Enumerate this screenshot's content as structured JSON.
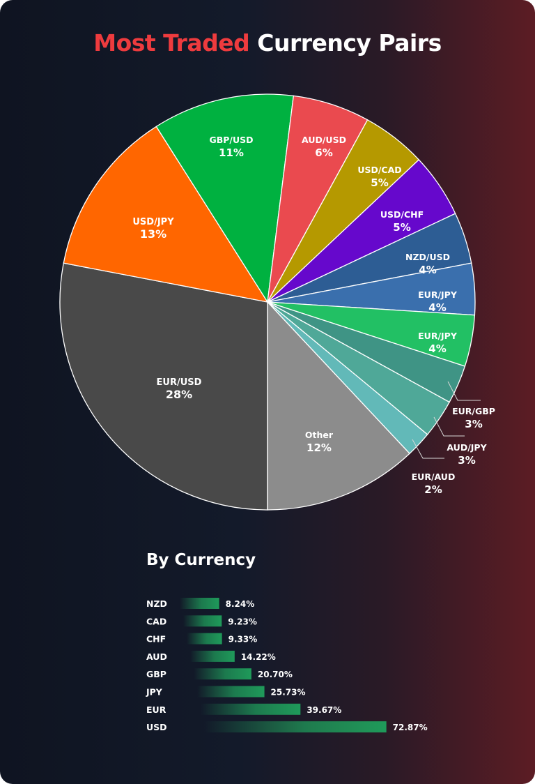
{
  "title": {
    "highlight": "Most Traded",
    "rest": "Currency Pairs"
  },
  "colors": {
    "title_highlight": "#ee3b3e",
    "bar": "#1f9a5a",
    "background_left": "#0f1421",
    "background_right": "#5c1c24"
  },
  "chart_data": [
    {
      "type": "pie",
      "title": "Most Traded Currency Pairs",
      "slices": [
        {
          "label": "EUR/USD",
          "value": 28,
          "display": "28%",
          "color": "#494949"
        },
        {
          "label": "USD/JPY",
          "value": 13,
          "display": "13%",
          "color": "#ff6600"
        },
        {
          "label": "GBP/USD",
          "value": 11,
          "display": "11%",
          "color": "#00b140"
        },
        {
          "label": "AUD/USD",
          "value": 6,
          "display": "6%",
          "color": "#ea4a4f"
        },
        {
          "label": "USD/CAD",
          "value": 5,
          "display": "5%",
          "color": "#b59900"
        },
        {
          "label": "USD/CHF",
          "value": 5,
          "display": "5%",
          "color": "#6608cc"
        },
        {
          "label": "NZD/USD",
          "value": 4,
          "display": "4%",
          "color": "#2d5d94"
        },
        {
          "label": "EUR/JPY",
          "value": 4,
          "display": "4%",
          "color": "#3a6fad"
        },
        {
          "label": "EUR/JPY",
          "value": 4,
          "display": "4%",
          "color": "#22c064"
        },
        {
          "label": "EUR/GBP",
          "value": 3,
          "display": "3%",
          "color": "#3f9485"
        },
        {
          "label": "AUD/JPY",
          "value": 3,
          "display": "3%",
          "color": "#4fa898"
        },
        {
          "label": "EUR/AUD",
          "value": 2,
          "display": "2%",
          "color": "#62b9b8"
        },
        {
          "label": "Other",
          "value": 12,
          "display": "12%",
          "color": "#8c8c8c"
        }
      ]
    },
    {
      "type": "bar",
      "orientation": "horizontal",
      "title": "By Currency",
      "categories": [
        "NZD",
        "CAD",
        "CHF",
        "AUD",
        "GBP",
        "JPY",
        "EUR",
        "USD"
      ],
      "values": [
        8.24,
        9.23,
        9.33,
        14.22,
        20.7,
        25.73,
        39.67,
        72.87
      ],
      "labels": [
        "8.24%",
        "9.23%",
        "9.33%",
        "14.22%",
        "20.70%",
        "25.73%",
        "39.67%",
        "72.87%"
      ]
    }
  ]
}
